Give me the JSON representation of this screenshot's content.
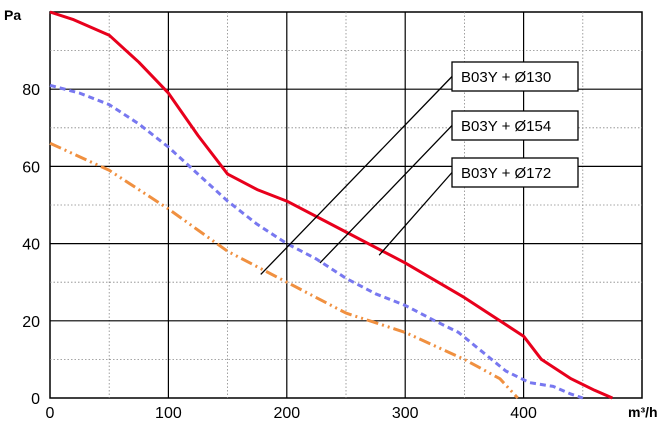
{
  "chart_data": {
    "type": "line",
    "y_unit": "Pa",
    "x_unit": "m³/h",
    "xlim": [
      0,
      500
    ],
    "ylim": [
      0,
      100
    ],
    "x_ticks": [
      "0",
      "100",
      "200",
      "300",
      "400"
    ],
    "y_ticks": [
      "0",
      "20",
      "40",
      "60",
      "80"
    ],
    "grid": true,
    "minor_grid": true,
    "series": [
      {
        "name": "B03Y + Ø130",
        "color": "#e8001c",
        "style": "solid",
        "x": [
          0,
          20,
          50,
          75,
          100,
          125,
          150,
          175,
          200,
          250,
          300,
          350,
          400,
          415,
          440,
          460,
          475
        ],
        "y": [
          100,
          98,
          94,
          87,
          79,
          68,
          58,
          54,
          51,
          43,
          35,
          26,
          16,
          10,
          5,
          2,
          0
        ]
      },
      {
        "name": "B03Y + Ø154",
        "color": "#7878f0",
        "style": "dashed",
        "x": [
          0,
          25,
          50,
          75,
          100,
          125,
          150,
          175,
          200,
          225,
          250,
          275,
          300,
          325,
          345,
          365,
          385,
          405,
          425,
          440,
          450
        ],
        "y": [
          81,
          79,
          76,
          71,
          65,
          58,
          51,
          45,
          40,
          36,
          31,
          27,
          24,
          20,
          17,
          12,
          7,
          4,
          3,
          1,
          0
        ]
      },
      {
        "name": "B03Y + Ø172",
        "color": "#f09040",
        "style": "dash-dot-dot",
        "x": [
          0,
          50,
          100,
          150,
          200,
          250,
          300,
          350,
          380,
          395
        ],
        "y": [
          66,
          59,
          49,
          38,
          30,
          22,
          17,
          10,
          5,
          0
        ]
      }
    ],
    "legend": {
      "placement": "top-right",
      "labels": [
        "B03Y + Ø130",
        "B03Y + Ø154",
        "B03Y + Ø172"
      ],
      "leader_points": [
        {
          "from_label": 0,
          "to": [
            178,
            32
          ]
        },
        {
          "from_label": 1,
          "to": [
            228,
            35
          ]
        },
        {
          "from_label": 2,
          "to": [
            278,
            37
          ]
        }
      ]
    }
  }
}
